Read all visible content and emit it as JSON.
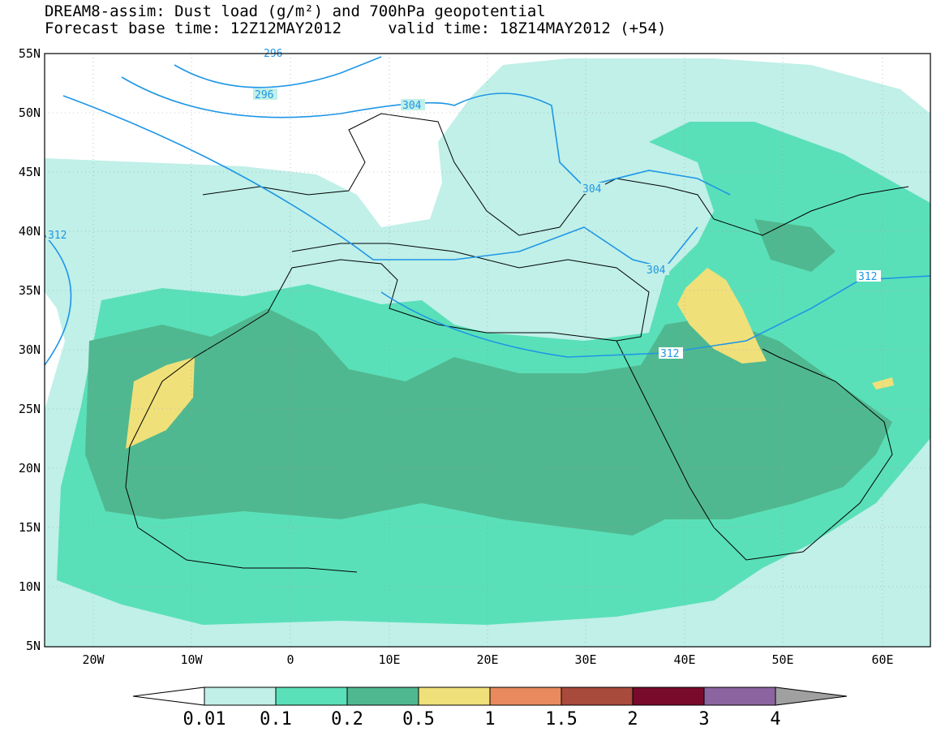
{
  "title": {
    "line1": "DREAM8-assim: Dust load (g/m²) and 700hPa geopotential",
    "line2": "Forecast base time: 12Z12MAY2012     valid time: 18Z14MAY2012 (+54)"
  },
  "axes": {
    "lat_labels": [
      "55N",
      "50N",
      "45N",
      "40N",
      "35N",
      "30N",
      "25N",
      "20N",
      "15N",
      "10N",
      "5N"
    ],
    "lon_labels": [
      "20W",
      "10W",
      "0",
      "10E",
      "20E",
      "30E",
      "40E",
      "50E",
      "60E"
    ]
  },
  "contour_labels": [
    "296",
    "304",
    "304",
    "304",
    "312",
    "312",
    "312",
    "296"
  ],
  "colorbar": {
    "labels": [
      "0.01",
      "0.1",
      "0.2",
      "0.5",
      "1",
      "1.5",
      "2",
      "3",
      "4"
    ],
    "colors": [
      "#c0f0e8",
      "#5ae0b8",
      "#50b890",
      "#f0e07a",
      "#e88a5e",
      "#a84a3c",
      "#780a2c",
      "#8c64a0",
      "#a0a0a0"
    ]
  },
  "chart_data": {
    "type": "map",
    "lat_range": [
      5,
      55
    ],
    "lon_range": [
      -25,
      65
    ],
    "field": "Dust load (g/m²)",
    "overlay": "700hPa geopotential",
    "levels": [
      0.01,
      0.1,
      0.2,
      0.5,
      1,
      1.5,
      2,
      3,
      4
    ]
  }
}
